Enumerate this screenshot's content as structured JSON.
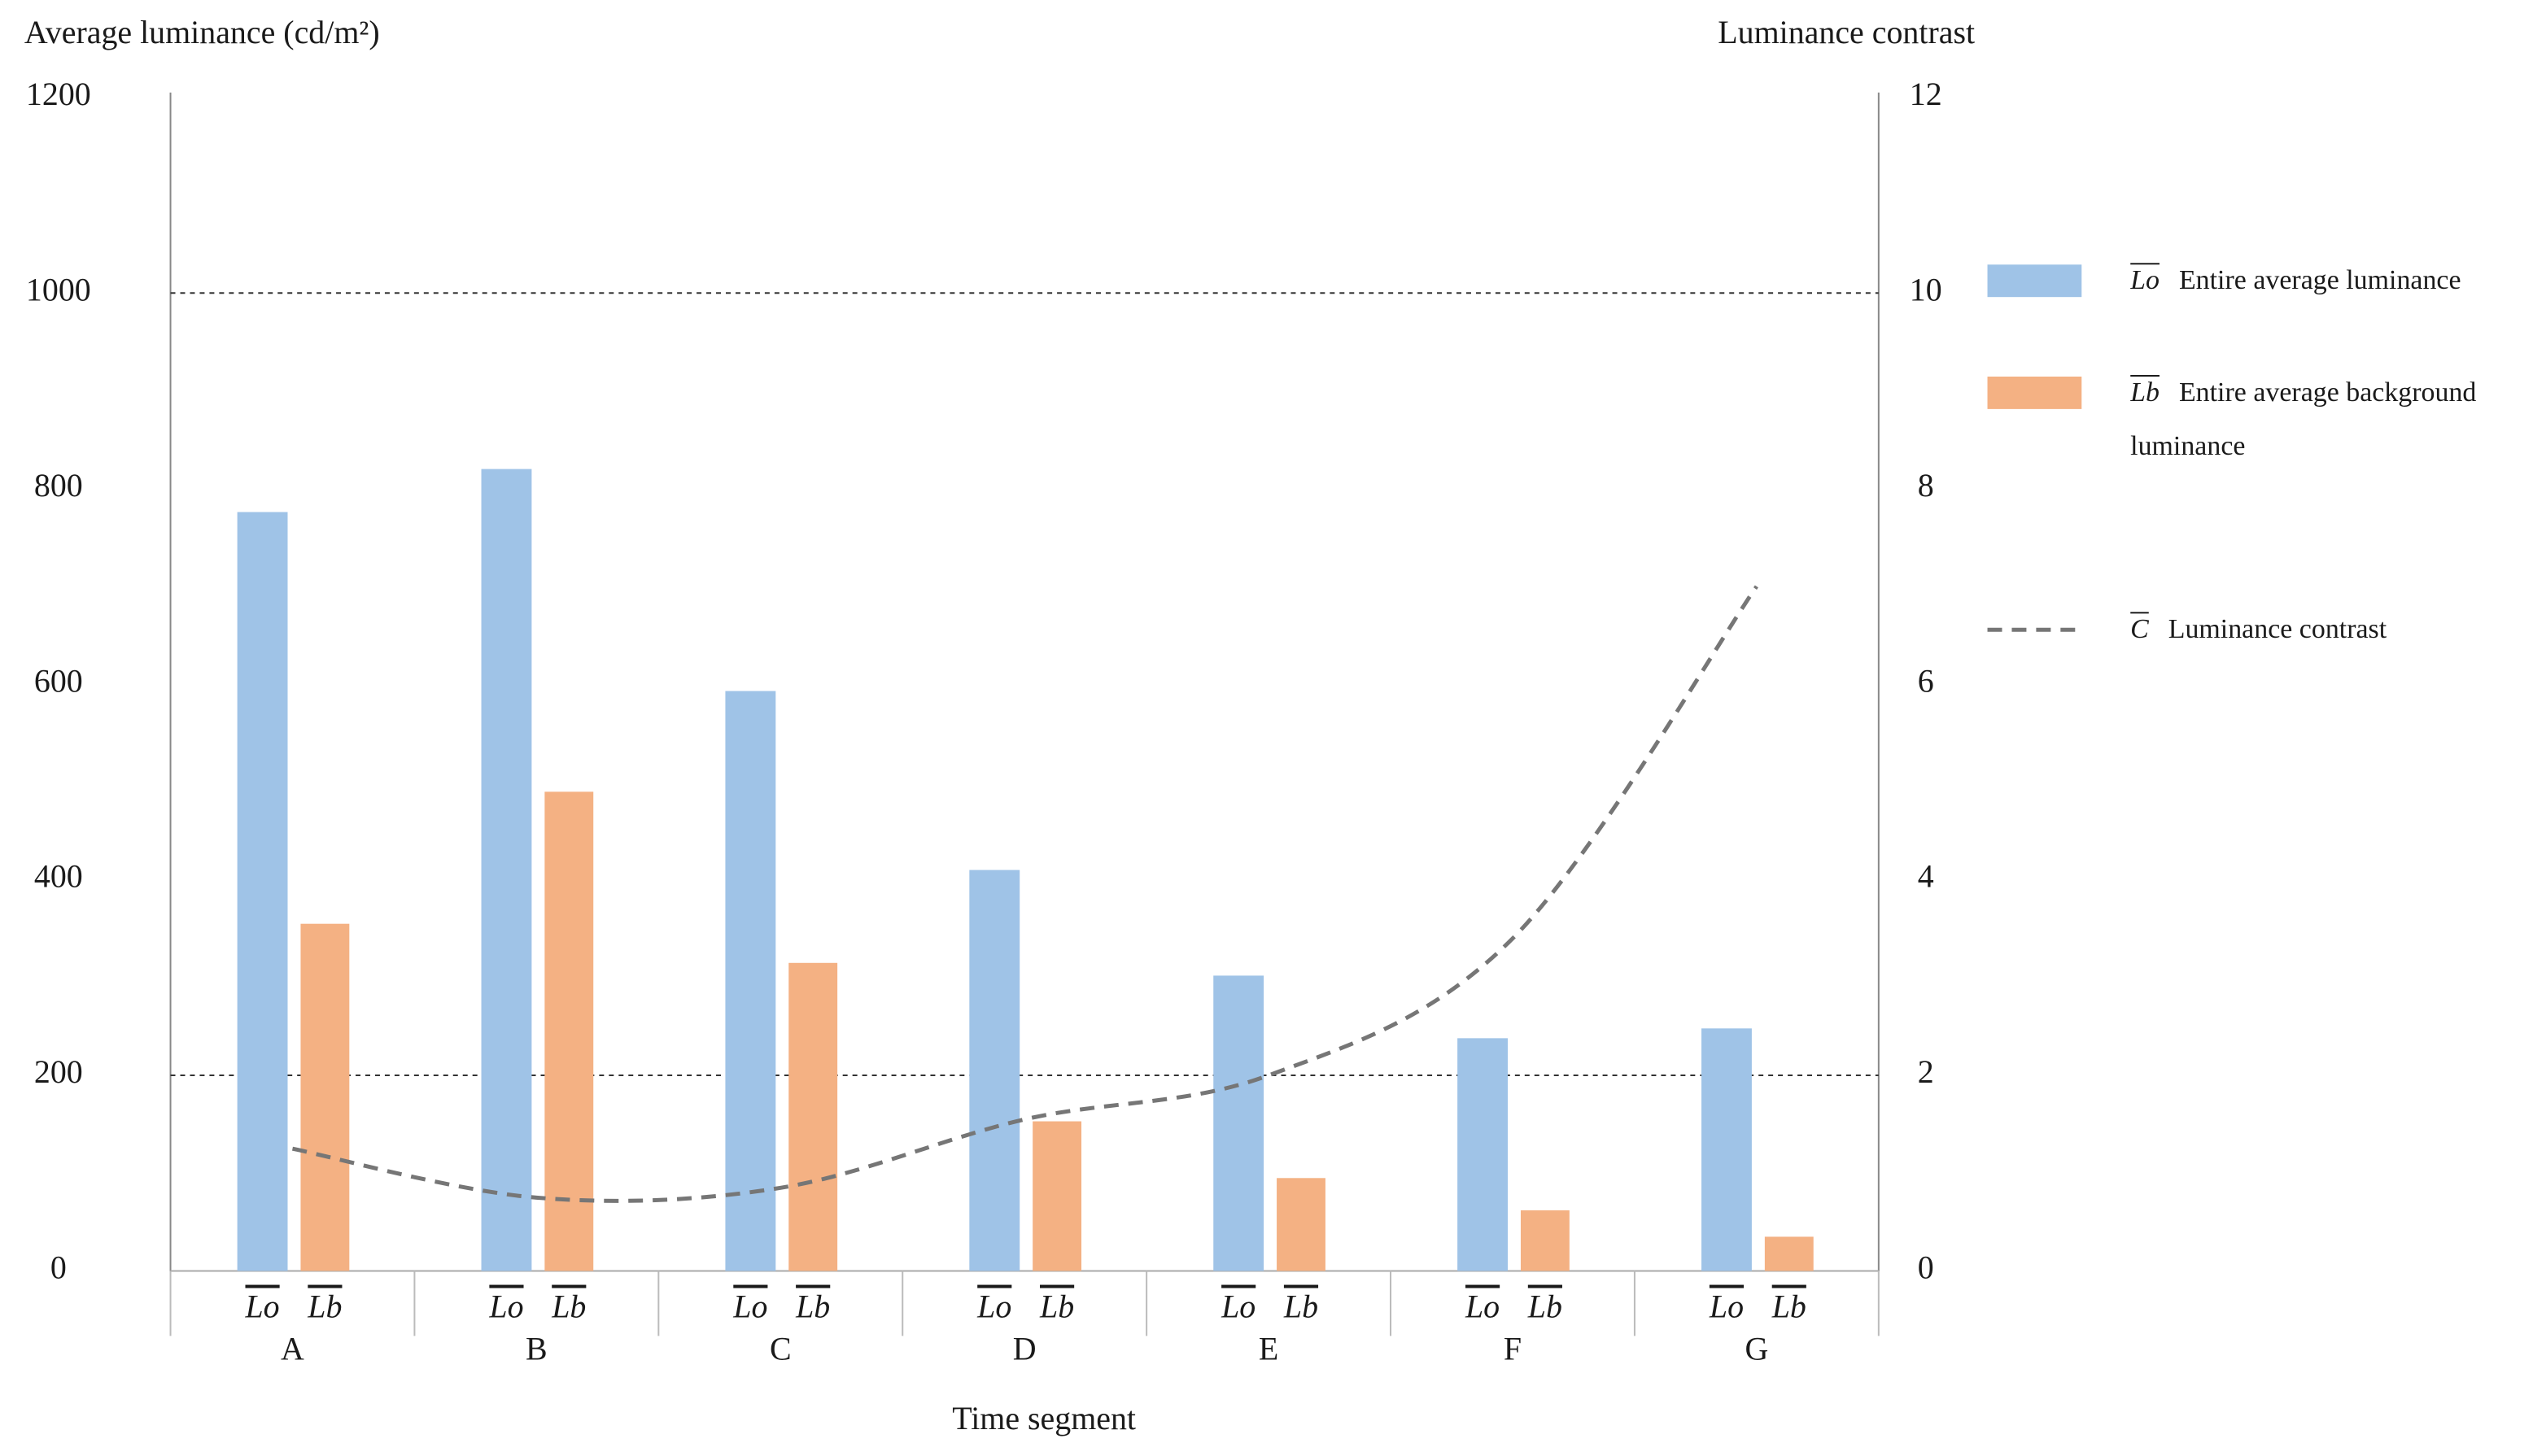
{
  "chart_data": {
    "type": "bar",
    "y_title": "Average luminance (cd/m²)",
    "y2_title": "Luminance contrast",
    "x_title": "Time segment",
    "categories": [
      "A",
      "B",
      "C",
      "D",
      "E",
      "F",
      "G"
    ],
    "series": [
      {
        "name": "Entire average luminance",
        "symbol": "Lo",
        "color": "#9fc3e7",
        "values": [
          776,
          820,
          593,
          410,
          302,
          238,
          248
        ]
      },
      {
        "name": "Entire average background luminance",
        "symbol": "Lb",
        "color": "#f4b183",
        "values": [
          355,
          490,
          315,
          153,
          95,
          62,
          35
        ]
      },
      {
        "name": "Luminance contrast",
        "symbol": "C",
        "color": "#767676",
        "axis": "y2",
        "type": "line",
        "dashed": true,
        "values": [
          1.25,
          0.75,
          0.85,
          1.55,
          2.0,
          3.4,
          7.0
        ]
      }
    ],
    "ylim": [
      0,
      1200
    ],
    "yticks": [
      0,
      200,
      400,
      600,
      800,
      1000,
      1200
    ],
    "y2lim": [
      0,
      12
    ],
    "y2ticks": [
      0,
      2,
      4,
      6,
      8,
      10,
      12
    ],
    "reference_lines": [
      1000,
      200
    ]
  }
}
